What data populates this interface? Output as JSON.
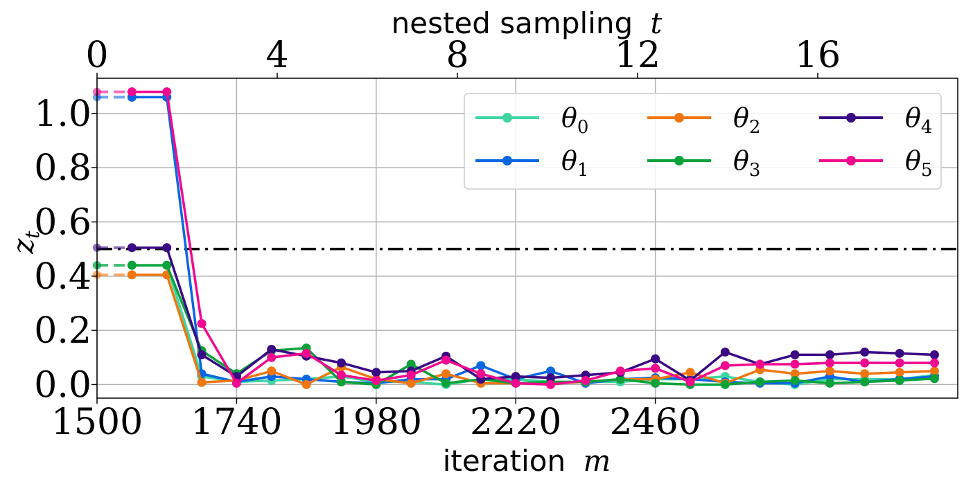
{
  "chart_data": {
    "type": "line",
    "xlabel": "iteration",
    "xlabel_var": "m",
    "ylabel": "z",
    "ylabel_sub": "t",
    "top_xlabel": "nested sampling",
    "top_xlabel_var": "t",
    "xlim": [
      1500,
      2980
    ],
    "ylim": [
      -0.05,
      1.13
    ],
    "x_ticks": [
      "1500",
      "1740",
      "1980",
      "2220",
      "2460"
    ],
    "x_tick_values": [
      1500,
      1740,
      1980,
      2220,
      2460
    ],
    "top_ticks": [
      "0",
      "4",
      "8",
      "12",
      "16"
    ],
    "top_tick_values": [
      0,
      4,
      8,
      12,
      16
    ],
    "y_ticks": [
      "0.0",
      "0.2",
      "0.4",
      "0.6",
      "0.8",
      "1.0"
    ],
    "y_tick_values": [
      0.0,
      0.2,
      0.4,
      0.6,
      0.8,
      1.0
    ],
    "grid": true,
    "legend_position": "top-right",
    "legend_columns": 3,
    "reference_line": {
      "y": 0.5,
      "style": "dash-dot",
      "color": "#000000"
    },
    "x": [
      1560,
      1620,
      1680,
      1740,
      1800,
      1860,
      1920,
      1980,
      2040,
      2100,
      2160,
      2220,
      2280,
      2340,
      2400,
      2460,
      2520,
      2580,
      2640,
      2700,
      2760,
      2820,
      2880,
      2940
    ],
    "series": [
      {
        "name": "θ",
        "sub": "0",
        "color": "#3ed6a0",
        "initial": 0.44,
        "values": [
          0.44,
          0.44,
          0.03,
          0.01,
          0.015,
          0.02,
          0.03,
          0.01,
          0.01,
          0.0,
          0.02,
          0.02,
          0.01,
          0.01,
          0.01,
          0.02,
          0.02,
          0.03,
          0.01,
          0.0,
          0.02,
          0.02,
          0.02,
          0.035
        ]
      },
      {
        "name": "θ",
        "sub": "1",
        "color": "#0b66e4",
        "initial": 1.06,
        "values": [
          1.06,
          1.06,
          0.04,
          0.01,
          0.03,
          0.02,
          0.01,
          0.005,
          0.02,
          0.02,
          0.07,
          0.02,
          0.05,
          0.005,
          0.02,
          0.025,
          0.02,
          0.01,
          0.005,
          0.005,
          0.03,
          0.01,
          0.02,
          0.03
        ]
      },
      {
        "name": "θ",
        "sub": "2",
        "color": "#f0760f",
        "initial": 0.405,
        "values": [
          0.405,
          0.405,
          0.008,
          0.015,
          0.05,
          0.0,
          0.065,
          0.02,
          0.005,
          0.04,
          0.005,
          0.005,
          0.005,
          0.01,
          0.02,
          0.02,
          0.045,
          0.005,
          0.055,
          0.04,
          0.05,
          0.04,
          0.045,
          0.05
        ]
      },
      {
        "name": "θ",
        "sub": "3",
        "color": "#0ba23a",
        "initial": 0.44,
        "values": [
          0.44,
          0.44,
          0.125,
          0.04,
          0.125,
          0.135,
          0.01,
          0.0,
          0.075,
          0.005,
          0.02,
          0.005,
          0.01,
          0.01,
          0.02,
          0.005,
          0.0,
          0.0,
          0.01,
          0.015,
          0.005,
          0.01,
          0.015,
          0.022
        ]
      },
      {
        "name": "θ",
        "sub": "4",
        "color": "#3a0a85",
        "initial": 0.505,
        "values": [
          0.505,
          0.505,
          0.11,
          0.03,
          0.13,
          0.105,
          0.08,
          0.045,
          0.05,
          0.105,
          0.02,
          0.03,
          0.025,
          0.035,
          0.045,
          0.095,
          0.015,
          0.12,
          0.075,
          0.11,
          0.11,
          0.12,
          0.115,
          0.11
        ]
      },
      {
        "name": "θ",
        "sub": "5",
        "color": "#f10a8f",
        "initial": 1.08,
        "values": [
          1.08,
          1.08,
          0.225,
          0.005,
          0.1,
          0.115,
          0.035,
          0.015,
          0.035,
          0.09,
          0.04,
          0.005,
          0.0,
          0.015,
          0.05,
          0.06,
          0.01,
          0.07,
          0.075,
          0.075,
          0.08,
          0.08,
          0.08,
          0.08
        ]
      }
    ]
  }
}
